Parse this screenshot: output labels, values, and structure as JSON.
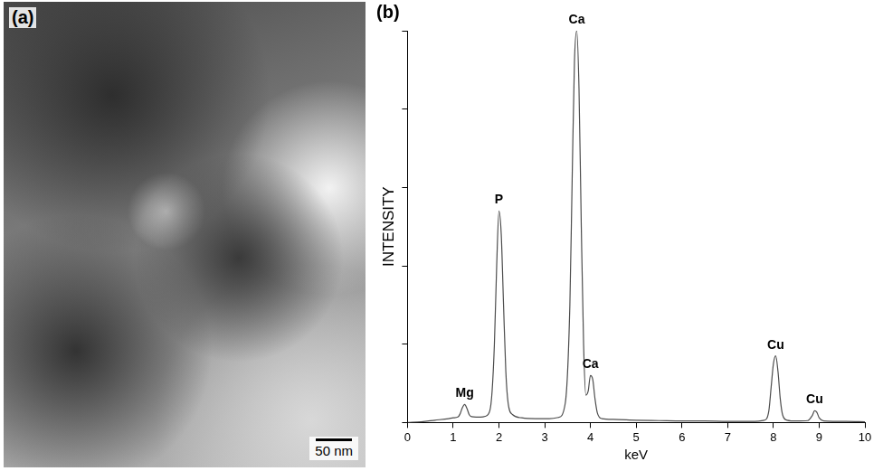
{
  "image_panel": {
    "panel_label": "(a)",
    "scale_bar": "50 nm"
  },
  "chart_data": {
    "type": "line",
    "panel_label": "(b)",
    "x_label": "keV",
    "y_label": "INTENSITY",
    "x": [
      0,
      0.3,
      0.6,
      0.9,
      1.0,
      1.1,
      1.15,
      1.2,
      1.25,
      1.3,
      1.35,
      1.4,
      1.5,
      1.6,
      1.7,
      1.8,
      1.85,
      1.9,
      1.95,
      2.0,
      2.05,
      2.1,
      2.15,
      2.2,
      2.3,
      2.5,
      2.8,
      3.1,
      3.3,
      3.45,
      3.55,
      3.6,
      3.65,
      3.7,
      3.75,
      3.8,
      3.85,
      3.9,
      3.95,
      4.0,
      4.05,
      4.1,
      4.15,
      4.25,
      4.5,
      5,
      5.5,
      6,
      6.5,
      7,
      7.5,
      7.8,
      7.9,
      7.95,
      8.0,
      8.05,
      8.1,
      8.15,
      8.2,
      8.3,
      8.5,
      8.75,
      8.85,
      8.9,
      8.95,
      9.0,
      9.1,
      9.3,
      9.6,
      10
    ],
    "values": [
      0,
      0.2,
      0.6,
      1.0,
      1.2,
      1.4,
      2.2,
      3.8,
      4.6,
      3.6,
      2.0,
      1.5,
      1.4,
      1.4,
      1.6,
      3,
      8,
      20,
      40,
      54,
      48,
      30,
      13,
      5,
      2,
      1.2,
      1.0,
      1.0,
      1.3,
      5,
      30,
      62,
      92,
      100,
      85,
      50,
      20,
      7,
      8,
      12,
      11,
      6,
      2.5,
      1.0,
      0.8,
      0.6,
      0.5,
      0.4,
      0.4,
      0.3,
      0.3,
      0.6,
      3,
      9,
      15,
      17,
      13,
      6,
      2,
      0.6,
      0.4,
      0.5,
      1.8,
      3.0,
      2.6,
      1.2,
      0.4,
      0.3,
      0.3,
      0.2
    ],
    "color": "#4d4d4d",
    "annotations": [
      {
        "x": 1.25,
        "y": 4.6,
        "text": "Mg"
      },
      {
        "x": 2.0,
        "y": 54,
        "text": "P"
      },
      {
        "x": 3.7,
        "y": 100,
        "text": "Ca"
      },
      {
        "x": 4.0,
        "y": 12,
        "text": "Ca"
      },
      {
        "x": 8.05,
        "y": 17,
        "text": "Cu"
      },
      {
        "x": 8.9,
        "y": 3.0,
        "text": "Cu"
      }
    ],
    "xlim": [
      0,
      10
    ],
    "xticks": [
      0,
      1,
      2,
      3,
      4,
      5,
      6,
      7,
      8,
      9,
      10
    ],
    "ylim": [
      0,
      100
    ],
    "yticks": [
      0,
      20,
      40,
      60,
      80,
      100
    ],
    "grid": false,
    "tick_labels": "x"
  }
}
